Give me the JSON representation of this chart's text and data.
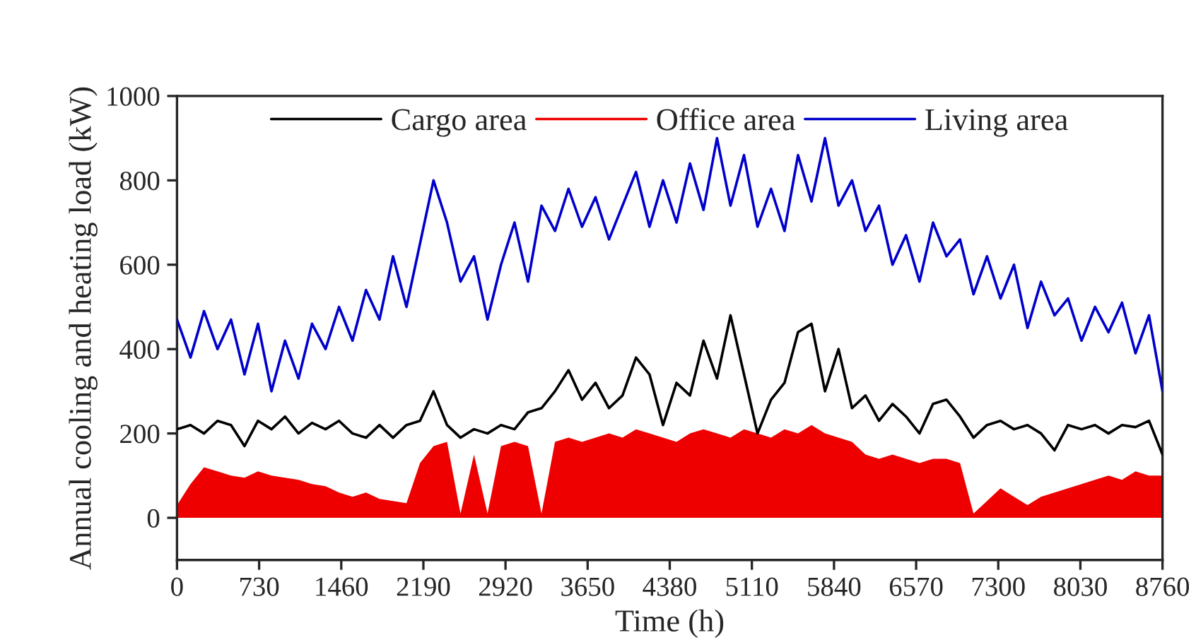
{
  "chart_data": {
    "type": "line",
    "xlabel": "Time (h)",
    "ylabel": "Annual cooling and heating load (kW)",
    "x": [
      0,
      120,
      240,
      360,
      480,
      600,
      720,
      840,
      960,
      1080,
      1200,
      1320,
      1440,
      1560,
      1680,
      1800,
      1920,
      2040,
      2160,
      2280,
      2400,
      2520,
      2640,
      2760,
      2880,
      3000,
      3120,
      3240,
      3360,
      3480,
      3600,
      3720,
      3840,
      3960,
      4080,
      4200,
      4320,
      4440,
      4560,
      4680,
      4800,
      4920,
      5040,
      5160,
      5280,
      5400,
      5520,
      5640,
      5760,
      5880,
      6000,
      6120,
      6240,
      6360,
      6480,
      6600,
      6720,
      6840,
      6960,
      7080,
      7200,
      7320,
      7440,
      7560,
      7680,
      7800,
      7920,
      8040,
      8160,
      8280,
      8400,
      8520,
      8640,
      8760
    ],
    "series": [
      {
        "name": "Cargo area",
        "color": "#000000",
        "values": [
          210,
          220,
          200,
          230,
          220,
          170,
          230,
          210,
          240,
          200,
          225,
          210,
          230,
          200,
          190,
          220,
          190,
          220,
          230,
          300,
          220,
          190,
          210,
          200,
          220,
          210,
          250,
          260,
          300,
          350,
          280,
          320,
          260,
          290,
          380,
          340,
          220,
          320,
          290,
          420,
          330,
          480,
          340,
          200,
          280,
          320,
          440,
          460,
          300,
          400,
          260,
          290,
          230,
          270,
          240,
          200,
          270,
          280,
          240,
          190,
          220,
          230,
          210,
          220,
          200,
          160,
          220,
          210,
          220,
          200,
          220,
          215,
          230,
          150
        ]
      },
      {
        "name": "Office area",
        "type": "area",
        "color": "#ee0000",
        "values": [
          30,
          80,
          120,
          110,
          100,
          95,
          110,
          100,
          95,
          90,
          80,
          75,
          60,
          50,
          60,
          45,
          40,
          35,
          130,
          170,
          180,
          10,
          150,
          10,
          170,
          180,
          170,
          10,
          180,
          190,
          180,
          190,
          200,
          190,
          210,
          200,
          190,
          180,
          200,
          210,
          200,
          190,
          210,
          200,
          190,
          210,
          200,
          220,
          200,
          190,
          180,
          150,
          140,
          150,
          140,
          130,
          140,
          140,
          130,
          10,
          40,
          70,
          50,
          30,
          50,
          60,
          70,
          80,
          90,
          100,
          90,
          110,
          100,
          100
        ]
      },
      {
        "name": "Living area",
        "color": "#0000cc",
        "values": [
          470,
          380,
          490,
          400,
          470,
          340,
          460,
          300,
          420,
          330,
          460,
          400,
          500,
          420,
          540,
          470,
          620,
          500,
          650,
          800,
          700,
          560,
          620,
          470,
          600,
          700,
          560,
          740,
          680,
          780,
          690,
          760,
          660,
          740,
          820,
          690,
          800,
          700,
          840,
          730,
          900,
          740,
          860,
          690,
          780,
          680,
          860,
          750,
          900,
          740,
          800,
          680,
          740,
          600,
          670,
          560,
          700,
          620,
          660,
          530,
          620,
          520,
          600,
          450,
          560,
          480,
          520,
          420,
          500,
          440,
          510,
          390,
          480,
          300
        ]
      }
    ],
    "xlim": [
      0,
      8760
    ],
    "xticks": [
      0,
      730,
      1460,
      2190,
      2920,
      3650,
      4380,
      5110,
      5840,
      6570,
      7300,
      8030,
      8760
    ],
    "ylim": [
      -100,
      1000
    ],
    "yticks": [
      0,
      200,
      400,
      600,
      800,
      1000
    ],
    "legend": "top",
    "grid": false
  }
}
